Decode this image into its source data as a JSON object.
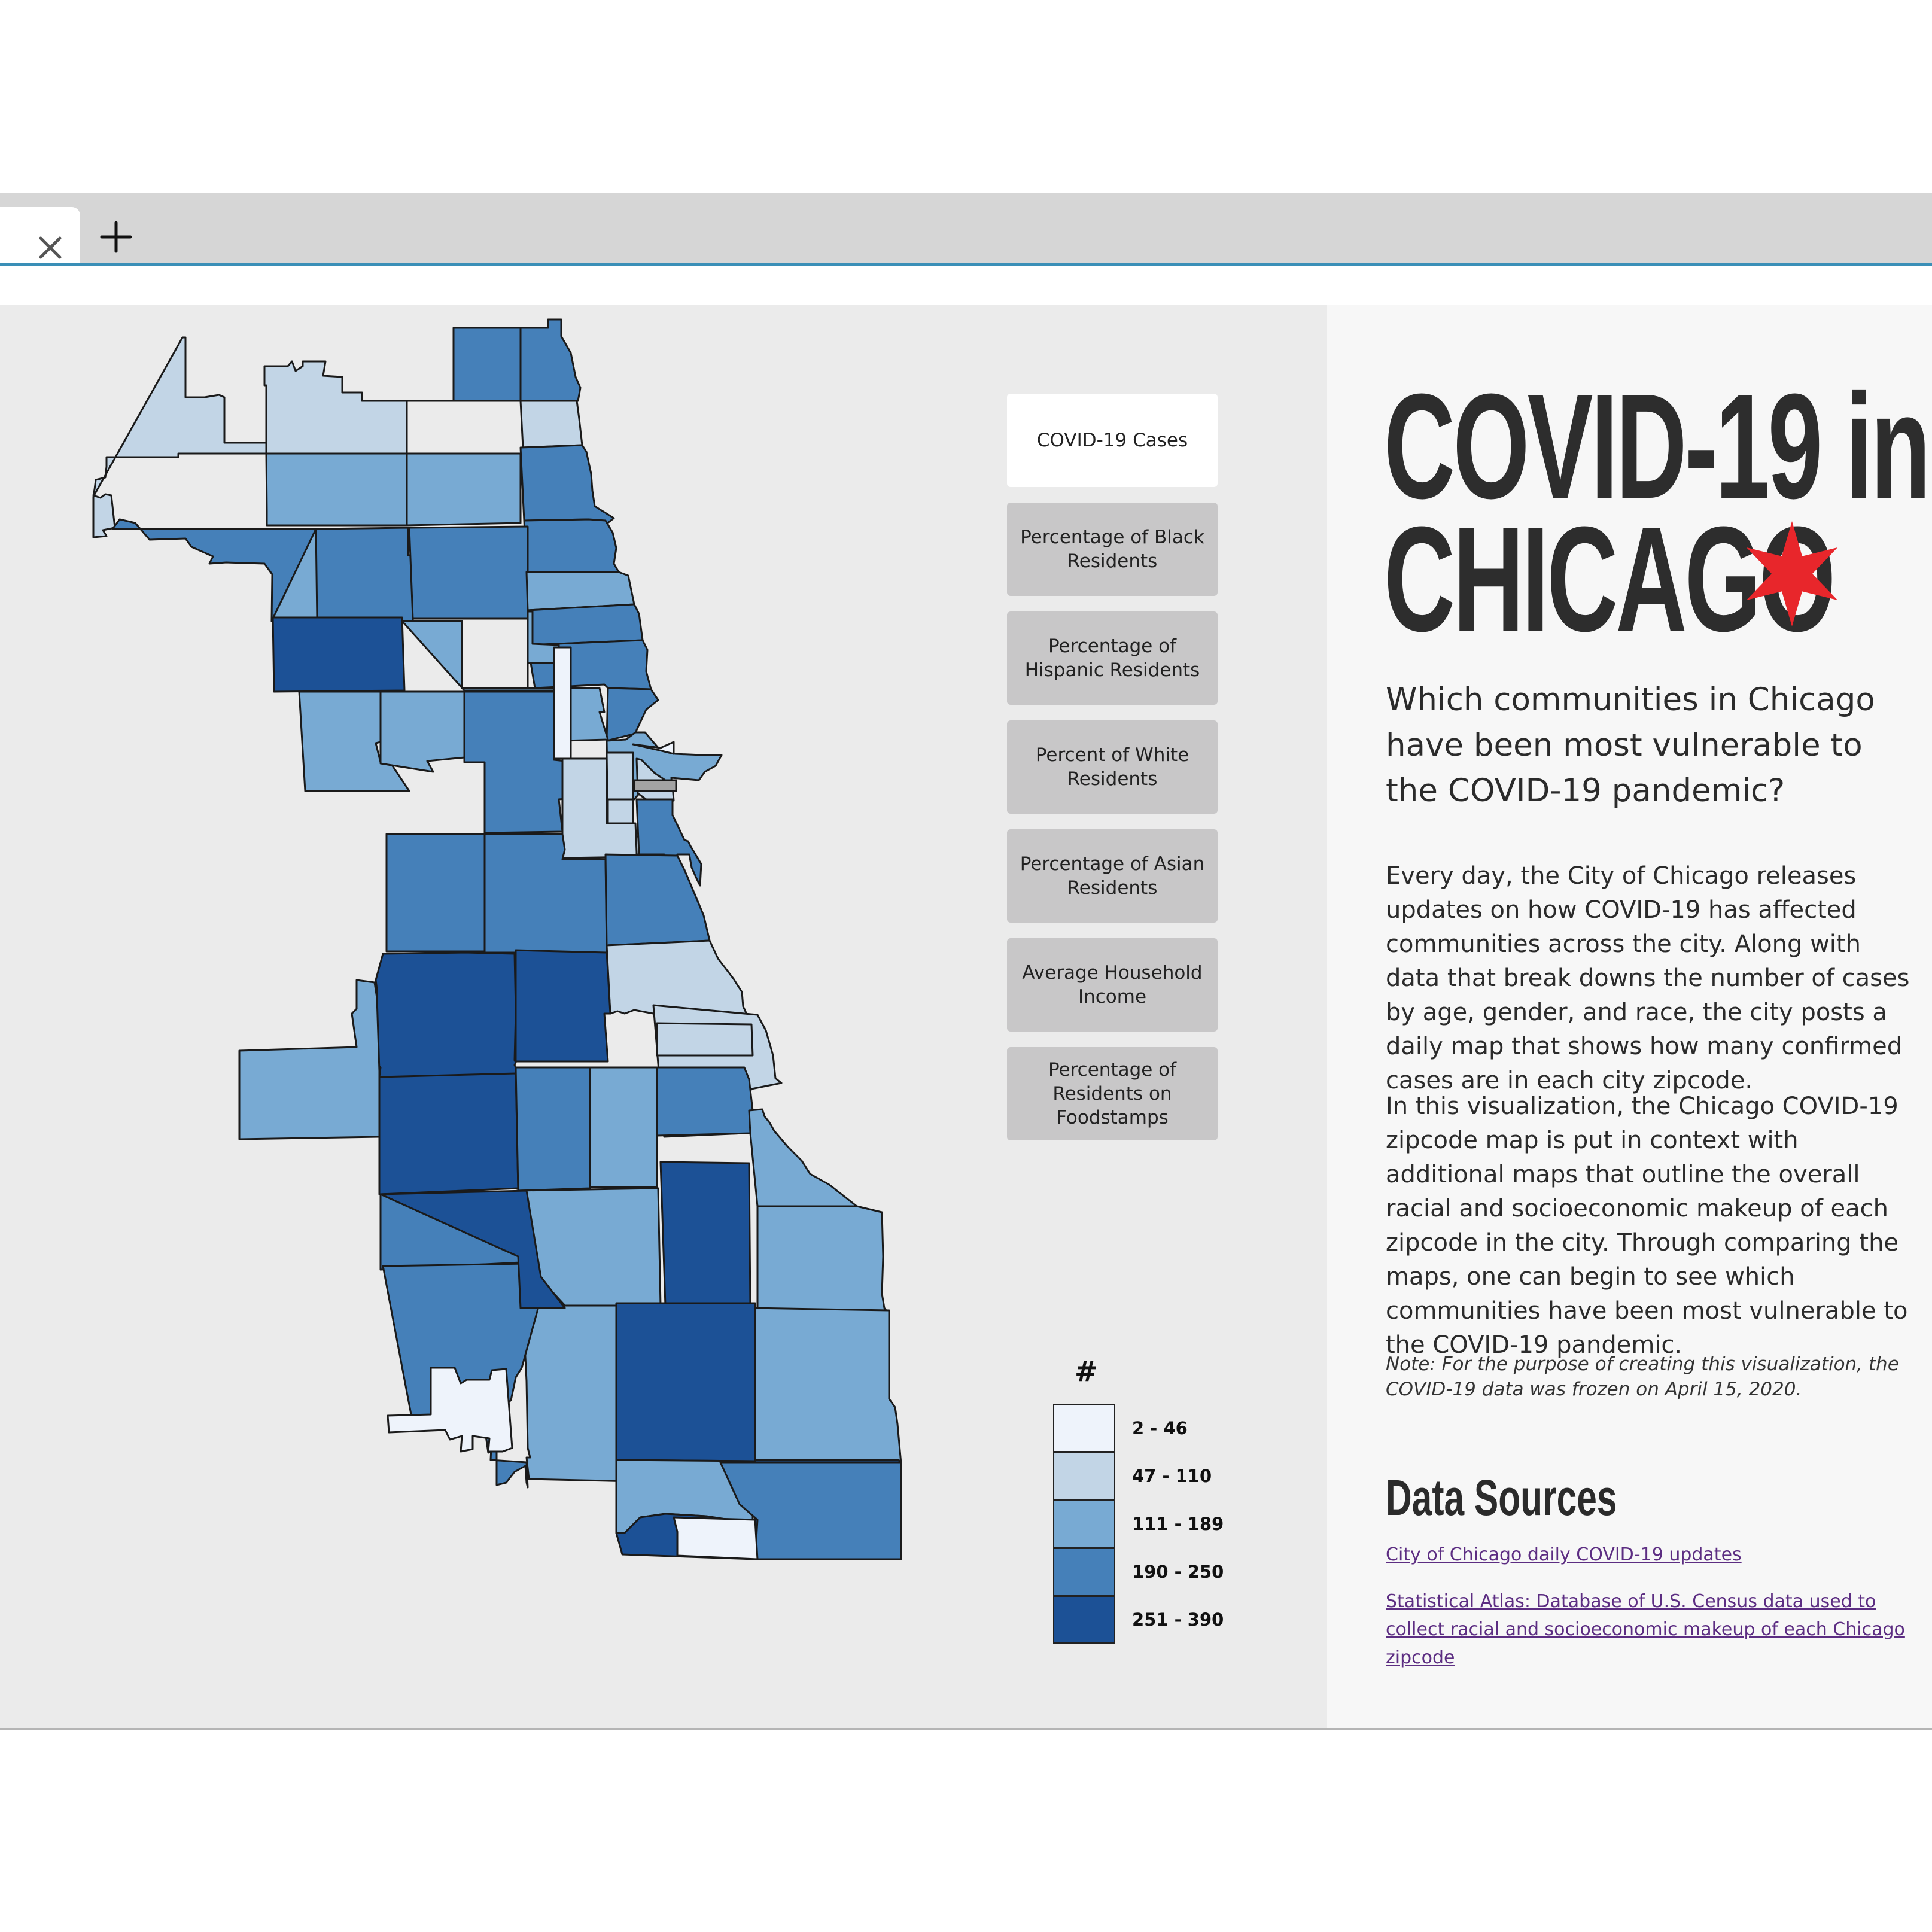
{
  "browser": {
    "close_icon": "close-icon",
    "new_tab_icon": "plus-icon"
  },
  "layer_buttons": [
    {
      "label": "COVID-19 Cases",
      "active": true
    },
    {
      "label": "Percentage of Black\nResidents",
      "active": false
    },
    {
      "label": "Percentage of\nHispanic Residents",
      "active": false
    },
    {
      "label": "Percent of White\nResidents",
      "active": false
    },
    {
      "label": "Percentage of Asian\nResidents",
      "active": false
    },
    {
      "label": "Average Household\nIncome",
      "active": false
    },
    {
      "label": "Percentage of\nResidents on\nFoodstamps",
      "active": false
    }
  ],
  "legend": {
    "title": "#",
    "bins": [
      {
        "label": "2 - 46",
        "color": "#eef3fb"
      },
      {
        "label": "47 - 110",
        "color": "#c2d5e6"
      },
      {
        "label": "111 - 189",
        "color": "#78aad3"
      },
      {
        "label": "190 - 250",
        "color": "#4580b9"
      },
      {
        "label": "251 - 390",
        "color": "#1c5196"
      }
    ],
    "nodata_color": "#a3a3a3",
    "border_color": "#1a1a1a"
  },
  "info": {
    "title_line1": "COVID-19 in",
    "title_line2": "CHICAGO",
    "star_icon": "chicago-star-icon",
    "star_color": "#e8262b",
    "subtitle": "Which communities in Chicago have been most vulnerable to the COVID-19 pandemic?",
    "paragraph1": "Every day, the City of Chicago releases updates on how COVID-19 has affected communities across the city. Along with data that break downs the number of cases by age, gender, and race, the city posts a daily map that shows how many confirmed cases are in each city zipcode.",
    "paragraph2": "In this visualization, the Chicago COVID-19 zipcode map is put in context with additional maps that outline the overall racial and socioeconomic makeup of each zipcode in the city. Through comparing the maps, one can begin to see which communities have been most vulnerable to the COVID-19 pandemic.",
    "note": "Note: For the purpose of creating this visualization, the COVID-19 data was frozen on April 15, 2020.",
    "sources_heading": "Data Sources",
    "sources": [
      "City of Chicago daily COVID-19 updates",
      "Statistical Atlas: Database of U.S. Census data used to collect racial and socioeconomic makeup of each Chicago zipcode"
    ],
    "link_color": "#5c2d82"
  },
  "map": {
    "zip_bins": [
      1,
      1,
      3,
      3,
      1,
      2,
      2,
      3,
      3,
      3,
      2,
      3,
      2,
      3,
      3,
      3,
      2,
      0,
      4,
      2,
      2,
      3,
      2,
      0,
      1,
      1,
      1,
      1,
      3,
      3,
      3,
      3,
      1,
      1,
      1,
      4,
      4,
      2,
      4,
      3,
      2,
      3,
      2,
      2,
      4,
      3,
      2,
      2,
      2,
      4,
      2,
      4,
      3,
      4,
      4,
      3,
      0,
      0,
      1
    ],
    "nodata_count": 1
  }
}
